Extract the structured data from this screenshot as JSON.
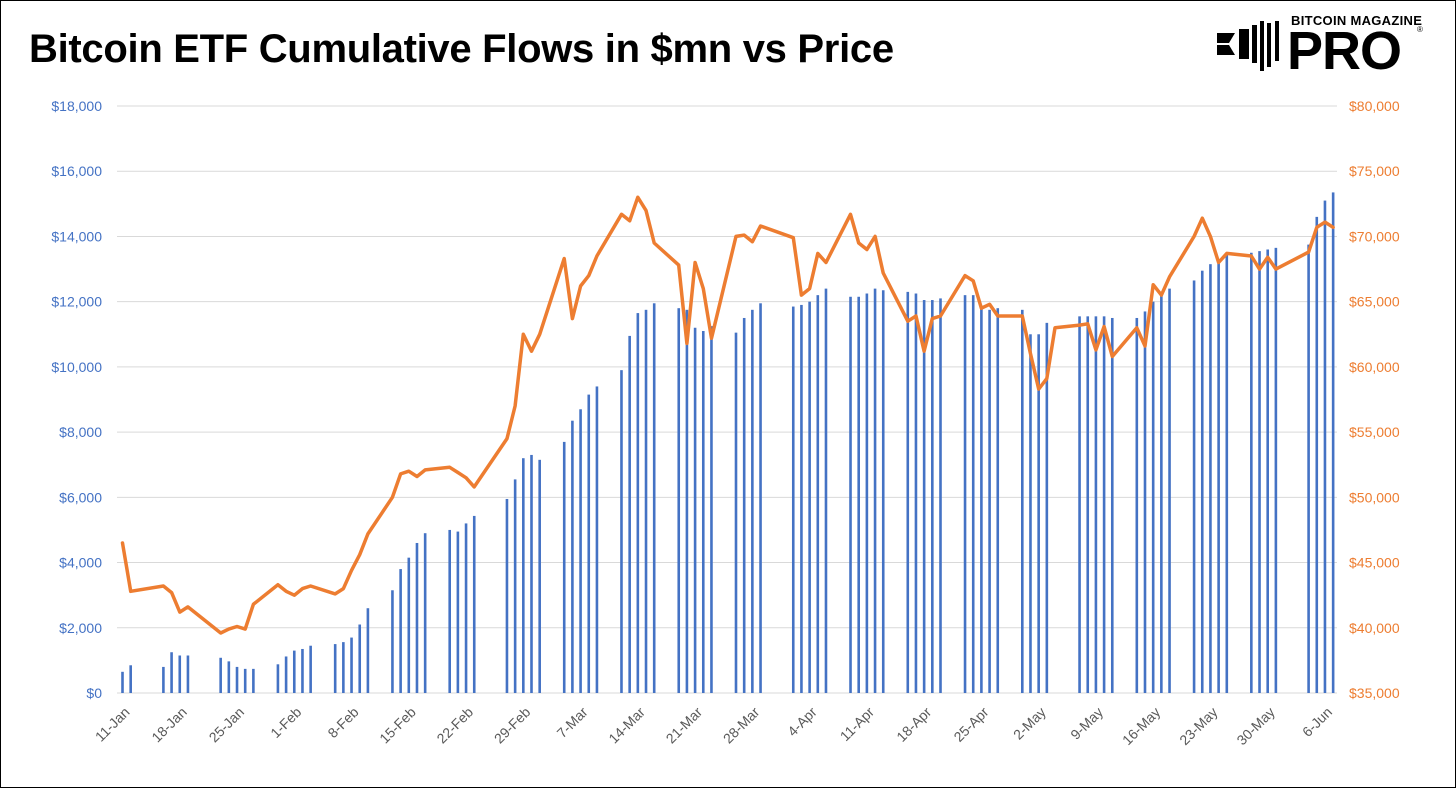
{
  "title": "Bitcoin ETF Cumulative Flows in $mn vs Price",
  "logo": {
    "top": "BITCOIN MAGAZINE",
    "main": "PRO",
    "reg": "®"
  },
  "colors": {
    "bars": "#4472C4",
    "line": "#ED7D31",
    "left_axis": "#4472C4",
    "right_axis": "#ED7D31",
    "grid": "#D9D9D9"
  },
  "chart_data": {
    "type": "bar+line",
    "x_tick_labels": [
      "11-Jan",
      "18-Jan",
      "25-Jan",
      "1-Feb",
      "8-Feb",
      "15-Feb",
      "22-Feb",
      "29-Feb",
      "7-Mar",
      "14-Mar",
      "21-Mar",
      "28-Mar",
      "4-Apr",
      "11-Apr",
      "18-Apr",
      "25-Apr",
      "2-May",
      "9-May",
      "16-May",
      "23-May",
      "30-May",
      "6-Jun"
    ],
    "left_axis": {
      "min": 0,
      "max": 18000,
      "ticks": [
        "$0",
        "$2,000",
        "$4,000",
        "$6,000",
        "$8,000",
        "$10,000",
        "$12,000",
        "$14,000",
        "$16,000",
        "$18,000"
      ]
    },
    "right_axis": {
      "min": 35000,
      "max": 80000,
      "ticks": [
        "$35,000",
        "$40,000",
        "$45,000",
        "$50,000",
        "$55,000",
        "$60,000",
        "$65,000",
        "$70,000",
        "$75,000",
        "$80,000"
      ]
    },
    "grid": true,
    "legend": "none",
    "bars_series": {
      "axis": "left",
      "points": [
        [
          0,
          650
        ],
        [
          1,
          850
        ],
        [
          5,
          800
        ],
        [
          6,
          1250
        ],
        [
          7,
          1150
        ],
        [
          8,
          1150
        ],
        [
          12,
          1080
        ],
        [
          13,
          970
        ],
        [
          14,
          800
        ],
        [
          15,
          740
        ],
        [
          16,
          740
        ],
        [
          19,
          880
        ],
        [
          20,
          1120
        ],
        [
          21,
          1300
        ],
        [
          22,
          1350
        ],
        [
          23,
          1450
        ],
        [
          26,
          1500
        ],
        [
          27,
          1560
        ],
        [
          28,
          1700
        ],
        [
          29,
          2100
        ],
        [
          30,
          2600
        ],
        [
          33,
          3150
        ],
        [
          34,
          3800
        ],
        [
          35,
          4150
        ],
        [
          36,
          4600
        ],
        [
          37,
          4900
        ],
        [
          40,
          5000
        ],
        [
          41,
          4950
        ],
        [
          42,
          5200
        ],
        [
          43,
          5430
        ],
        [
          47,
          5950
        ],
        [
          48,
          6550
        ],
        [
          49,
          7200
        ],
        [
          50,
          7300
        ],
        [
          51,
          7150
        ],
        [
          54,
          7700
        ],
        [
          55,
          8350
        ],
        [
          56,
          8700
        ],
        [
          57,
          9150
        ],
        [
          58,
          9400
        ],
        [
          61,
          9900
        ],
        [
          62,
          10950
        ],
        [
          63,
          11650
        ],
        [
          64,
          11750
        ],
        [
          65,
          11950
        ],
        [
          68,
          11800
        ],
        [
          69,
          11750
        ],
        [
          70,
          11200
        ],
        [
          71,
          11100
        ],
        [
          72,
          11250
        ],
        [
          75,
          11050
        ],
        [
          76,
          11500
        ],
        [
          77,
          11750
        ],
        [
          78,
          11950
        ],
        [
          82,
          11850
        ],
        [
          83,
          11900
        ],
        [
          84,
          12000
        ],
        [
          85,
          12200
        ],
        [
          86,
          12400
        ],
        [
          89,
          12150
        ],
        [
          90,
          12150
        ],
        [
          91,
          12250
        ],
        [
          92,
          12400
        ],
        [
          93,
          12350
        ],
        [
          96,
          12300
        ],
        [
          97,
          12250
        ],
        [
          98,
          12050
        ],
        [
          99,
          12050
        ],
        [
          100,
          12100
        ],
        [
          103,
          12200
        ],
        [
          104,
          12200
        ],
        [
          105,
          11850
        ],
        [
          106,
          11750
        ],
        [
          107,
          11800
        ],
        [
          110,
          11750
        ],
        [
          111,
          11000
        ],
        [
          112,
          11000
        ],
        [
          113,
          11350
        ],
        [
          117,
          11550
        ],
        [
          118,
          11550
        ],
        [
          119,
          11550
        ],
        [
          120,
          11550
        ],
        [
          121,
          11500
        ],
        [
          124,
          11500
        ],
        [
          125,
          11700
        ],
        [
          126,
          12000
        ],
        [
          127,
          12200
        ],
        [
          128,
          12400
        ],
        [
          131,
          12650
        ],
        [
          132,
          12950
        ],
        [
          133,
          13150
        ],
        [
          134,
          13300
        ],
        [
          135,
          13450
        ],
        [
          138,
          13500
        ],
        [
          139,
          13550
        ],
        [
          140,
          13600
        ],
        [
          141,
          13650
        ],
        [
          145,
          13750
        ],
        [
          146,
          14600
        ],
        [
          147,
          15100
        ],
        [
          148,
          15350
        ]
      ]
    },
    "line_series": {
      "axis": "right",
      "points": [
        [
          0,
          46500
        ],
        [
          1,
          42800
        ],
        [
          5,
          43200
        ],
        [
          6,
          42700
        ],
        [
          7,
          41200
        ],
        [
          8,
          41600
        ],
        [
          12,
          39600
        ],
        [
          13,
          39900
        ],
        [
          14,
          40100
        ],
        [
          15,
          39900
        ],
        [
          16,
          41800
        ],
        [
          19,
          43300
        ],
        [
          20,
          42800
        ],
        [
          21,
          42500
        ],
        [
          22,
          43000
        ],
        [
          23,
          43200
        ],
        [
          26,
          42600
        ],
        [
          27,
          43000
        ],
        [
          28,
          44400
        ],
        [
          29,
          45600
        ],
        [
          30,
          47200
        ],
        [
          33,
          50000
        ],
        [
          34,
          51800
        ],
        [
          35,
          52000
        ],
        [
          36,
          51600
        ],
        [
          37,
          52100
        ],
        [
          40,
          52300
        ],
        [
          41,
          51900
        ],
        [
          42,
          51500
        ],
        [
          43,
          50800
        ],
        [
          47,
          54500
        ],
        [
          48,
          57000
        ],
        [
          49,
          62500
        ],
        [
          50,
          61200
        ],
        [
          51,
          62500
        ],
        [
          54,
          68300
        ],
        [
          55,
          63700
        ],
        [
          56,
          66200
        ],
        [
          57,
          67000
        ],
        [
          58,
          68500
        ],
        [
          61,
          71700
        ],
        [
          62,
          71200
        ],
        [
          63,
          73000
        ],
        [
          64,
          72000
        ],
        [
          65,
          69500
        ],
        [
          68,
          67800
        ],
        [
          69,
          61800
        ],
        [
          70,
          68000
        ],
        [
          71,
          66000
        ],
        [
          72,
          62200
        ],
        [
          75,
          70000
        ],
        [
          76,
          70100
        ],
        [
          77,
          69600
        ],
        [
          78,
          70800
        ],
        [
          82,
          69900
        ],
        [
          83,
          65500
        ],
        [
          84,
          66000
        ],
        [
          85,
          68700
        ],
        [
          86,
          68000
        ],
        [
          89,
          71700
        ],
        [
          90,
          69500
        ],
        [
          91,
          69000
        ],
        [
          92,
          70000
        ],
        [
          93,
          67200
        ],
        [
          96,
          63500
        ],
        [
          97,
          63900
        ],
        [
          98,
          61200
        ],
        [
          99,
          63700
        ],
        [
          100,
          63900
        ],
        [
          103,
          67000
        ],
        [
          104,
          66600
        ],
        [
          105,
          64500
        ],
        [
          106,
          64800
        ],
        [
          107,
          63900
        ],
        [
          110,
          63900
        ],
        [
          111,
          61000
        ],
        [
          112,
          58300
        ],
        [
          113,
          59100
        ],
        [
          114,
          63000
        ],
        [
          117,
          63200
        ],
        [
          118,
          63300
        ],
        [
          119,
          61300
        ],
        [
          120,
          63100
        ],
        [
          121,
          60800
        ],
        [
          124,
          63000
        ],
        [
          125,
          61600
        ],
        [
          126,
          66300
        ],
        [
          127,
          65500
        ],
        [
          128,
          66900
        ],
        [
          131,
          70000
        ],
        [
          132,
          71400
        ],
        [
          133,
          70000
        ],
        [
          134,
          68000
        ],
        [
          135,
          68700
        ],
        [
          138,
          68500
        ],
        [
          139,
          67500
        ],
        [
          140,
          68400
        ],
        [
          141,
          67500
        ],
        [
          145,
          68800
        ],
        [
          146,
          70700
        ],
        [
          147,
          71100
        ],
        [
          148,
          70700
        ]
      ]
    }
  }
}
